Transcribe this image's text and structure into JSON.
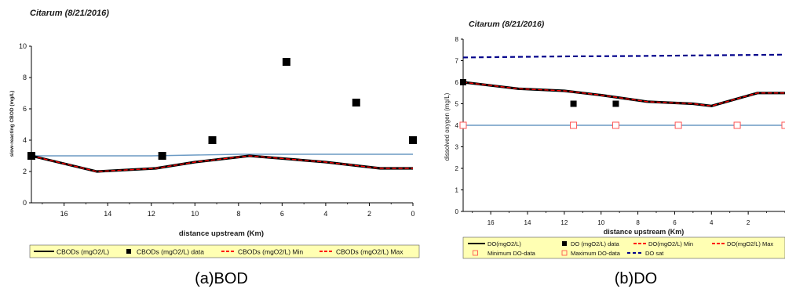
{
  "chart_data": [
    {
      "type": "line",
      "title": "Citarum (8/21/2016)",
      "xlabel": "distance upstream (Km)",
      "ylabel": "slow-reacting CBOD (mg/L)",
      "xlim": [
        17.5,
        0
      ],
      "ylim": [
        0,
        10
      ],
      "x_ticks": [
        16,
        14,
        12,
        10,
        8,
        6,
        4,
        2,
        0
      ],
      "y_ticks": [
        0,
        2,
        4,
        6,
        8,
        10
      ],
      "grid": false,
      "caption": "(a)BOD",
      "legend_position": "bottom",
      "series": [
        {
          "name": "CBODs (mgO2/L)",
          "kind": "line",
          "color": "#000000",
          "x": [
            17.5,
            14.5,
            11.8,
            10,
            7.5,
            4,
            1.5,
            0
          ],
          "y": [
            3.0,
            2.0,
            2.2,
            2.6,
            3.0,
            2.6,
            2.2,
            2.2
          ]
        },
        {
          "name": "CBODs (mgO2/L) data",
          "kind": "marker",
          "color": "#000000",
          "x": [
            17.5,
            11.5,
            9.2,
            5.8,
            2.6,
            0
          ],
          "y": [
            3.0,
            3.0,
            4.0,
            9.0,
            6.4,
            4.0
          ]
        },
        {
          "name": "CBODs (mgO2/L) Min",
          "kind": "dash",
          "color": "#ff0000",
          "x": [
            17.5,
            14.5,
            11.8,
            10,
            7.5,
            4,
            1.5,
            0
          ],
          "y": [
            3.0,
            2.0,
            2.2,
            2.6,
            3.0,
            2.6,
            2.2,
            2.2
          ]
        },
        {
          "name": "CBODs (mgO2/L) Max",
          "kind": "dash",
          "color": "#ff0000",
          "x": [
            17.5,
            14.5,
            11.8,
            10,
            7.5,
            4,
            1.5,
            0
          ],
          "y": [
            3.0,
            2.0,
            2.2,
            2.6,
            3.0,
            2.6,
            2.2,
            2.2
          ]
        },
        {
          "name": "",
          "kind": "line",
          "color": "#6b9ac4",
          "x": [
            17.5,
            12,
            8,
            4,
            0
          ],
          "y": [
            3.0,
            3.0,
            3.1,
            3.1,
            3.1
          ]
        }
      ]
    },
    {
      "type": "line",
      "title": "Citarum (8/21/2016)",
      "xlabel": "distance upstream (Km)",
      "ylabel": "dissolved oxygen (mg/L)",
      "xlim": [
        17.5,
        0
      ],
      "ylim": [
        0,
        8
      ],
      "x_ticks": [
        16,
        14,
        12,
        10,
        8,
        6,
        4,
        2
      ],
      "y_ticks": [
        0,
        1,
        2,
        3,
        4,
        5,
        6,
        7,
        8
      ],
      "grid": false,
      "caption": "(b)DO",
      "legend_position": "bottom",
      "series": [
        {
          "name": "DO(mgO2/L)",
          "kind": "line",
          "color": "#000000",
          "x": [
            17.5,
            14.5,
            12,
            10,
            7.5,
            5,
            4,
            1.5,
            0
          ],
          "y": [
            6.0,
            5.7,
            5.6,
            5.4,
            5.1,
            5.0,
            4.9,
            5.5,
            5.5
          ]
        },
        {
          "name": "DO (mgO2/L) data",
          "kind": "marker",
          "color": "#000000",
          "x": [
            17.5,
            11.5,
            9.2
          ],
          "y": [
            6.0,
            5.0,
            5.0
          ]
        },
        {
          "name": "DO(mgO2/L) Min",
          "kind": "dash",
          "color": "#ff0000",
          "x": [
            17.5,
            14.5,
            12,
            10,
            7.5,
            5,
            4,
            1.5,
            0
          ],
          "y": [
            6.0,
            5.7,
            5.6,
            5.4,
            5.1,
            5.0,
            4.9,
            5.5,
            5.5
          ]
        },
        {
          "name": "DO(mgO2/L) Max",
          "kind": "dash",
          "color": "#ff0000",
          "x": [
            17.5,
            14.5,
            12,
            10,
            7.5,
            5,
            4,
            1.5,
            0
          ],
          "y": [
            6.0,
            5.7,
            5.6,
            5.4,
            5.1,
            5.0,
            4.9,
            5.5,
            5.5
          ]
        },
        {
          "name": "Minimum DO-data",
          "kind": "open-marker",
          "color": "#ff0000",
          "x": [
            17.5,
            11.5,
            9.2,
            5.8,
            2.6,
            0
          ],
          "y": [
            4.0,
            4.0,
            4.0,
            4.0,
            4.0,
            4.0
          ]
        },
        {
          "name": "Maximum DO-data",
          "kind": "open-marker",
          "color": "#ff0000",
          "x": [],
          "y": []
        },
        {
          "name": "DO sat",
          "kind": "dashed-line",
          "color": "#00008b",
          "x": [
            17.5,
            12,
            8,
            4,
            0
          ],
          "y": [
            7.15,
            7.2,
            7.22,
            7.25,
            7.28
          ]
        },
        {
          "name": "",
          "kind": "line",
          "color": "#6b9ac4",
          "x": [
            17.5,
            0
          ],
          "y": [
            4.0,
            4.0
          ]
        }
      ]
    }
  ]
}
